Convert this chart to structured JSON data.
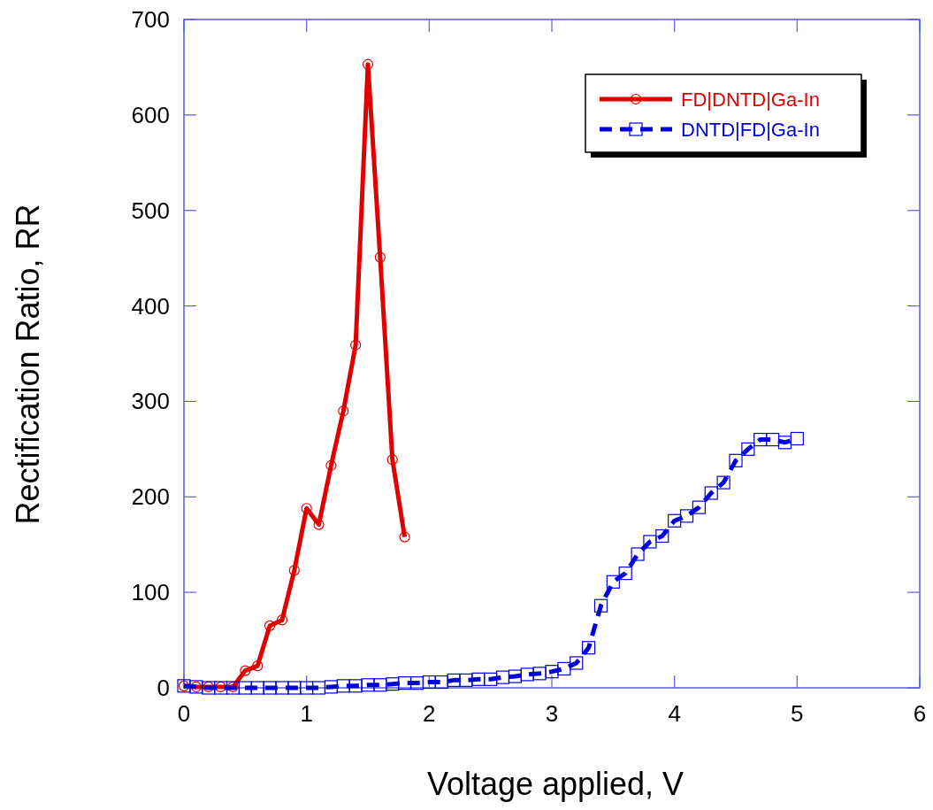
{
  "chart_data": {
    "type": "line",
    "xlabel": "Voltage applied, V",
    "ylabel": "Rectification Ratio, RR",
    "xlim": [
      0,
      6
    ],
    "ylim": [
      0,
      700
    ],
    "xticks": [
      0,
      1,
      2,
      3,
      4,
      5,
      6
    ],
    "yticks": [
      0,
      100,
      200,
      300,
      400,
      500,
      600,
      700
    ],
    "grid": false,
    "legend": "top right",
    "series": [
      {
        "name": "FD|DNTD|Ga-In",
        "color": "#e00000",
        "marker": "circle",
        "line_style": "solid",
        "x": [
          0,
          0.1,
          0.2,
          0.3,
          0.4,
          0.5,
          0.6,
          0.7,
          0.8,
          0.9,
          1.0,
          1.1,
          1.2,
          1.3,
          1.4,
          1.5,
          1.6,
          1.7,
          1.8
        ],
        "values": [
          2,
          1,
          1,
          1,
          1,
          18,
          23,
          65,
          71,
          123,
          188,
          171,
          233,
          290,
          359,
          653,
          451,
          239,
          158
        ]
      },
      {
        "name": "DNTD|FD|Ga-In",
        "color": "#0000dd",
        "marker": "square",
        "line_style": "dashed",
        "x": [
          0,
          0.1,
          0.2,
          0.3,
          0.4,
          0.5,
          0.6,
          0.7,
          0.8,
          0.9,
          1.0,
          1.1,
          1.2,
          1.3,
          1.4,
          1.5,
          1.6,
          1.7,
          1.8,
          1.9,
          2.0,
          2.1,
          2.2,
          2.3,
          2.4,
          2.5,
          2.6,
          2.7,
          2.8,
          2.9,
          3.0,
          3.1,
          3.2,
          3.3,
          3.4,
          3.5,
          3.6,
          3.7,
          3.8,
          3.9,
          4.0,
          4.1,
          4.2,
          4.3,
          4.4,
          4.5,
          4.6,
          4.7,
          4.8,
          4.9,
          5.0
        ],
        "values": [
          2,
          1,
          0,
          0,
          0,
          0,
          0,
          0,
          0,
          0,
          0,
          0,
          1,
          2,
          2,
          3,
          3,
          4,
          5,
          5,
          6,
          6,
          8,
          8,
          9,
          9,
          11,
          12,
          14,
          15,
          17,
          20,
          26,
          42,
          86,
          111,
          120,
          140,
          153,
          159,
          175,
          180,
          189,
          204,
          215,
          238,
          250,
          260,
          260,
          257,
          261
        ]
      }
    ]
  }
}
